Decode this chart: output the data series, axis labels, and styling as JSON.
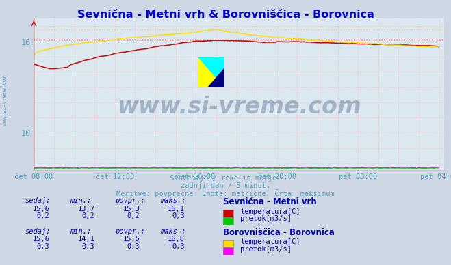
{
  "title": "Sevnična - Metni vrh & Borovniščica - Borovnica",
  "title_color": "#0000cc",
  "bg_color": "#cdd8e4",
  "plot_bg_color": "#dce8f0",
  "grid_color": "#ffbbbb",
  "grid_color_minor": "#ddddff",
  "xlabel_color": "#5599bb",
  "text_color": "#5599bb",
  "x_start": 0,
  "x_end": 240,
  "ylim_min": 7.5,
  "ylim_max": 17.5,
  "yticks": [
    10,
    16
  ],
  "xtick_labels": [
    "čet 08:00",
    "čet 12:00",
    "čet 16:00",
    "čet 20:00",
    "pet 00:00",
    "pet 04:00"
  ],
  "xtick_positions": [
    0,
    48,
    96,
    144,
    192,
    240
  ],
  "sevnicna_color": "#cc0000",
  "borovnica_color": "#ffdd00",
  "sevnicna_flow_color": "#00cc00",
  "borovnica_flow_color": "#ff00ff",
  "sevnicna_temp_max": 16.1,
  "borovnica_temp_max": 16.8,
  "watermark": "www.si-vreme.com",
  "watermark_color": "#1a3a6a",
  "subtitle1": "Slovenija / reke in morje.",
  "subtitle2": "zadnji dan / 5 minut.",
  "subtitle3": "Meritve: povprečne  Enote: metrične  Črta: maksimum",
  "table_color": "#0000aa",
  "legend1_title": "Sevnična - Metni vrh",
  "legend2_title": "Borovniščica - Borovnica",
  "s1_sedaj": "15,6",
  "s1_min": "13,7",
  "s1_povpr": "15,3",
  "s1_maks": "16,1",
  "s1_sedaj2": "0,2",
  "s1_min2": "0,2",
  "s1_povpr2": "0,2",
  "s1_maks2": "0,3",
  "s2_sedaj": "15,6",
  "s2_min": "14,1",
  "s2_povpr": "15,5",
  "s2_maks": "16,8",
  "s2_sedaj2": "0,3",
  "s2_min2": "0,3",
  "s2_povpr2": "0,3",
  "s2_maks2": "0,3",
  "left_label_color": "#6699bb",
  "axis_color": "#cc0000",
  "arrow_color": "#cc0000"
}
